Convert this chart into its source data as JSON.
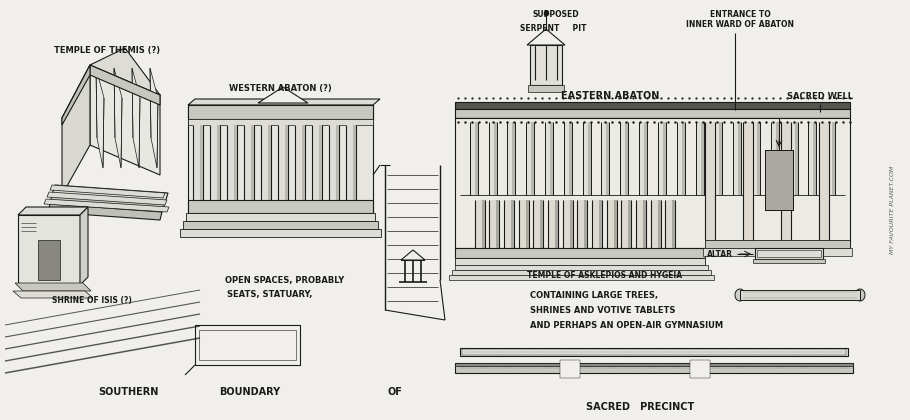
{
  "bg_color": "#f0efeb",
  "ink_color": "#1a1a18",
  "mid_color": "#c8c7c0",
  "light_color": "#dddcd6",
  "watermark": "MY FAVOURITE PLANET.COM",
  "labels": {
    "temple_themis": "TEMPLE OF THEMIS (?)",
    "western_abaton": "WESTERN ABATON (?)",
    "shrine_isis": "SHRINE OF ISIS (?)",
    "supposed": "SUPPOSED",
    "serpent_pit": "SERPENT     PIT",
    "entrance_to": "ENTRANCE TO",
    "inner_ward": "INNER WARD OF ABATON",
    "eastern_abaton": "EASTERN ABATON",
    "sacred_well": "SACRED WELL",
    "temple_asklepios_of": "TEMPLE OF",
    "temple_asklepios_main": "ASKLEPIOS AND HYGEIA",
    "containing": "CONTAINING LARGE TREES,",
    "shrines": "SHRINES AND VOTIVE TABLETS",
    "gymnasium": "AND PERHAPS AN OPEN-AIR GYMNASIUM",
    "altar": "ALTAR",
    "southern": "SOUTHERN",
    "boundary": "BOUNDARY",
    "of": "OF",
    "sacred_precinct": "SACRED   PRECINCT",
    "open_spaces1": "OPEN SPACES, PROBABLY",
    "open_spaces2": "SEATS, STATUARY,"
  }
}
